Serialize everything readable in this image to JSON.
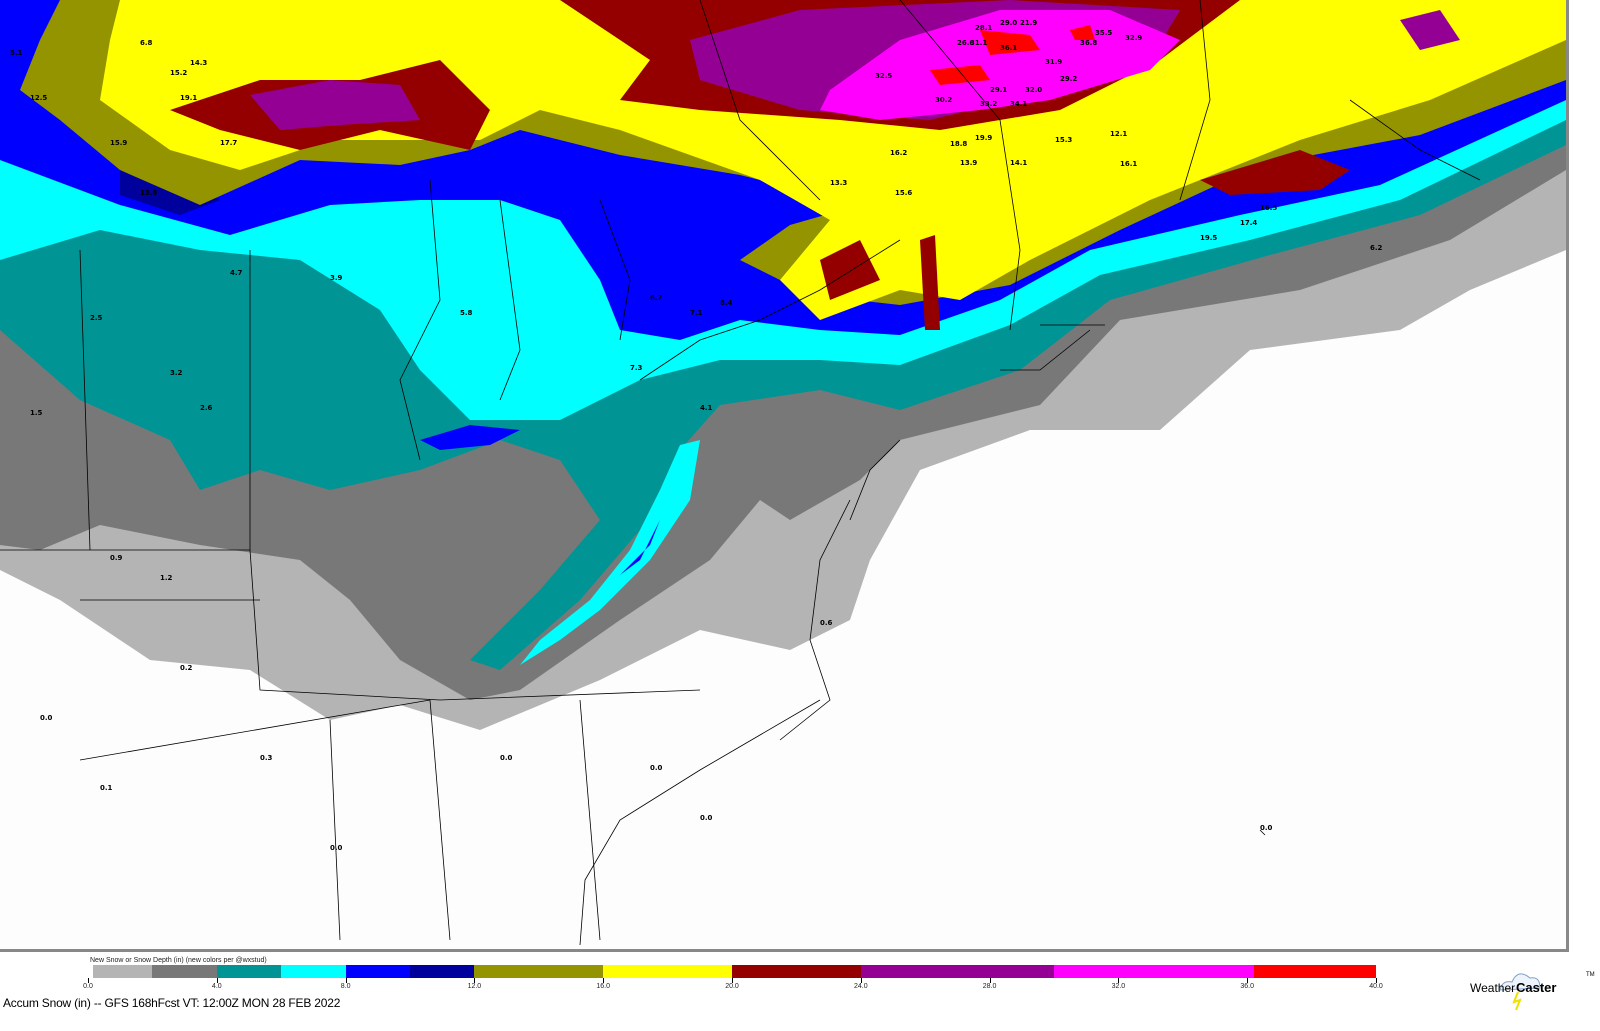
{
  "legend": {
    "title": "New Snow or Snow Depth (in) (new colors per @wxstud)",
    "units": "in",
    "bins": [
      {
        "from": 0.0,
        "to": 2.0,
        "color": "#b4b4b4"
      },
      {
        "from": 2.0,
        "to": 4.0,
        "color": "#787878"
      },
      {
        "from": 4.0,
        "to": 6.0,
        "color": "#009494"
      },
      {
        "from": 6.0,
        "to": 8.0,
        "color": "#00ffff"
      },
      {
        "from": 8.0,
        "to": 10.0,
        "color": "#0000ff"
      },
      {
        "from": 10.0,
        "to": 12.0,
        "color": "#00009c"
      },
      {
        "from": 12.0,
        "to": 16.0,
        "color": "#949400"
      },
      {
        "from": 16.0,
        "to": 20.0,
        "color": "#ffff00"
      },
      {
        "from": 20.0,
        "to": 24.0,
        "color": "#940000"
      },
      {
        "from": 24.0,
        "to": 30.0,
        "color": "#940094"
      },
      {
        "from": 30.0,
        "to": 36.2,
        "color": "#ff00ff"
      },
      {
        "from": 36.2,
        "to": 40.0,
        "color": "#ff0000"
      }
    ],
    "ticks": [
      "0.0",
      "4.0",
      "8.0",
      "12.0",
      "16.0",
      "20.0",
      "24.0",
      "28.0",
      "32.0",
      "36.0",
      "40.0"
    ]
  },
  "caption": "Accum Snow (in) -- GFS 168hFcst VT: 12:00Z MON 28 FEB 2022",
  "logo": {
    "text_light": "Weather",
    "text_bold": "Caster",
    "tm": "TM"
  },
  "map_labels": [
    "21.9",
    "28.1",
    "29.0",
    "26.6",
    "31.1",
    "36.1",
    "35.5",
    "36.8",
    "32.9",
    "32.5",
    "30.2",
    "29.1",
    "33.2",
    "34.1",
    "31.9",
    "29.2",
    "32.0",
    "19.9",
    "18.8",
    "16.2",
    "13.9",
    "14.1",
    "15.3",
    "12.1",
    "16.1",
    "13.3",
    "15.6",
    "19.1",
    "17.7",
    "15.9",
    "13.8",
    "12.5",
    "15.2",
    "14.3",
    "5.1",
    "6.8",
    "4.7",
    "3.9",
    "2.5",
    "1.5",
    "6.7",
    "7.1",
    "5.8",
    "3.2",
    "2.6",
    "1.2",
    "0.9",
    "0.2",
    "0.0",
    "0.1",
    "0.3",
    "0.0",
    "0.0",
    "0.0",
    "0.0",
    "0.0",
    "17.4",
    "19.5",
    "16.5",
    "6.2",
    "8.4",
    "4.1",
    "7.3",
    "0.6"
  ]
}
